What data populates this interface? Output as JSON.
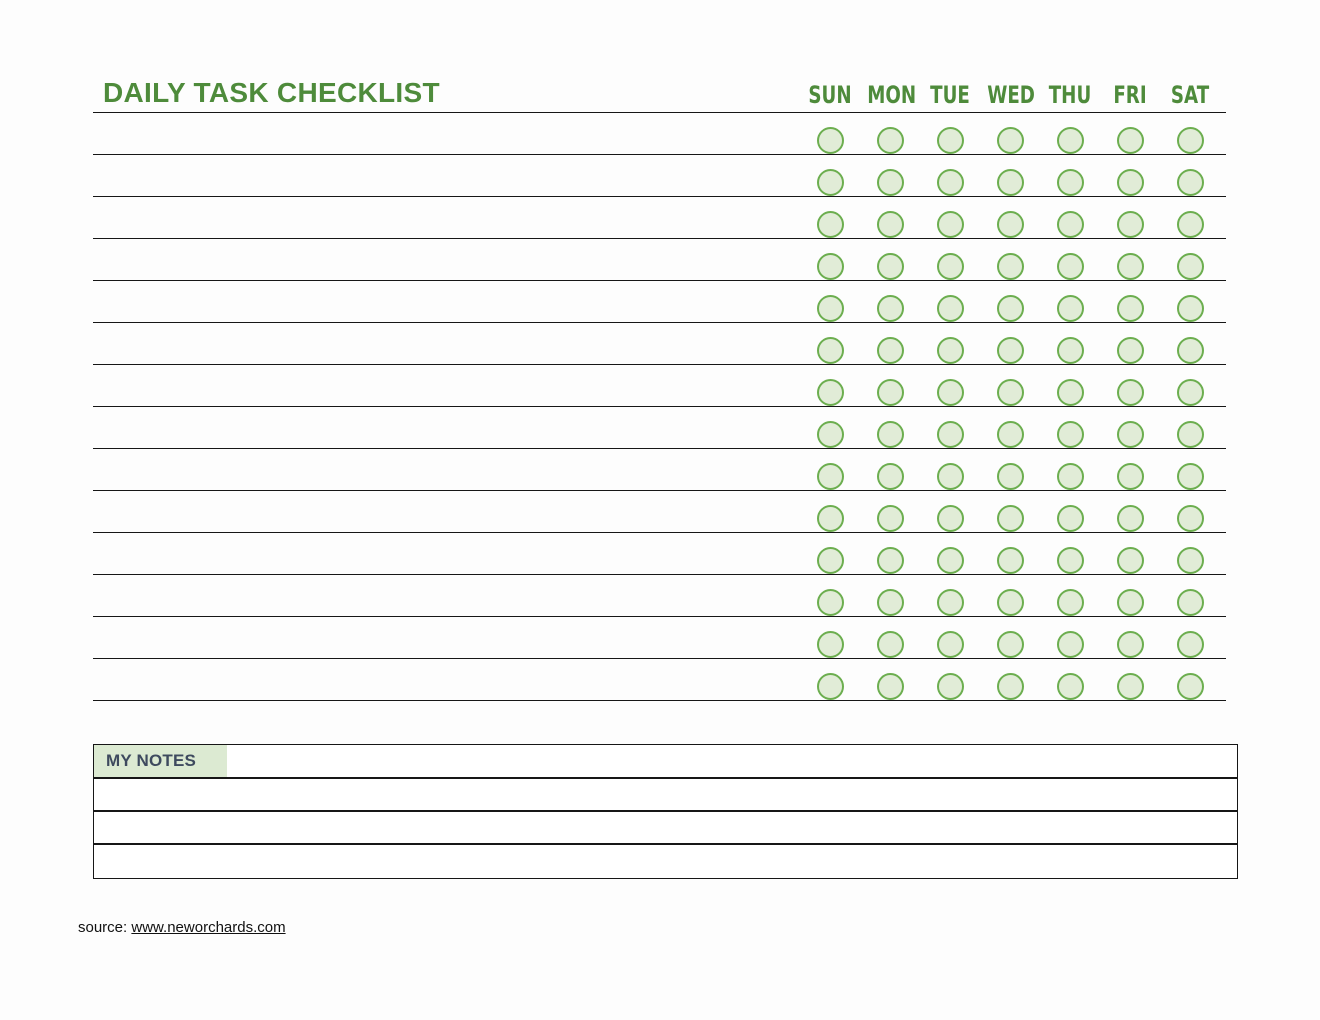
{
  "page": {
    "title": "DAILY TASK CHECKLIST"
  },
  "checklist": {
    "days": [
      "SUN",
      "MON",
      "TUE",
      "WED",
      "THU",
      "FRI",
      "SAT"
    ],
    "row_count": 14,
    "columns_per_row": 7
  },
  "notes": {
    "label": "MY NOTES",
    "row_count": 3
  },
  "footer": {
    "source_label": "source:",
    "source_url": "www.neworchards.com"
  },
  "colors": {
    "bg": "#fdfdfd",
    "accent": "#4e8b3b",
    "line": "#161616",
    "circle-border": "#6cae4f",
    "circle-fill": "#e1ecd7",
    "label-bg": "#dcead2",
    "notes-text": "#3e4a5e"
  }
}
